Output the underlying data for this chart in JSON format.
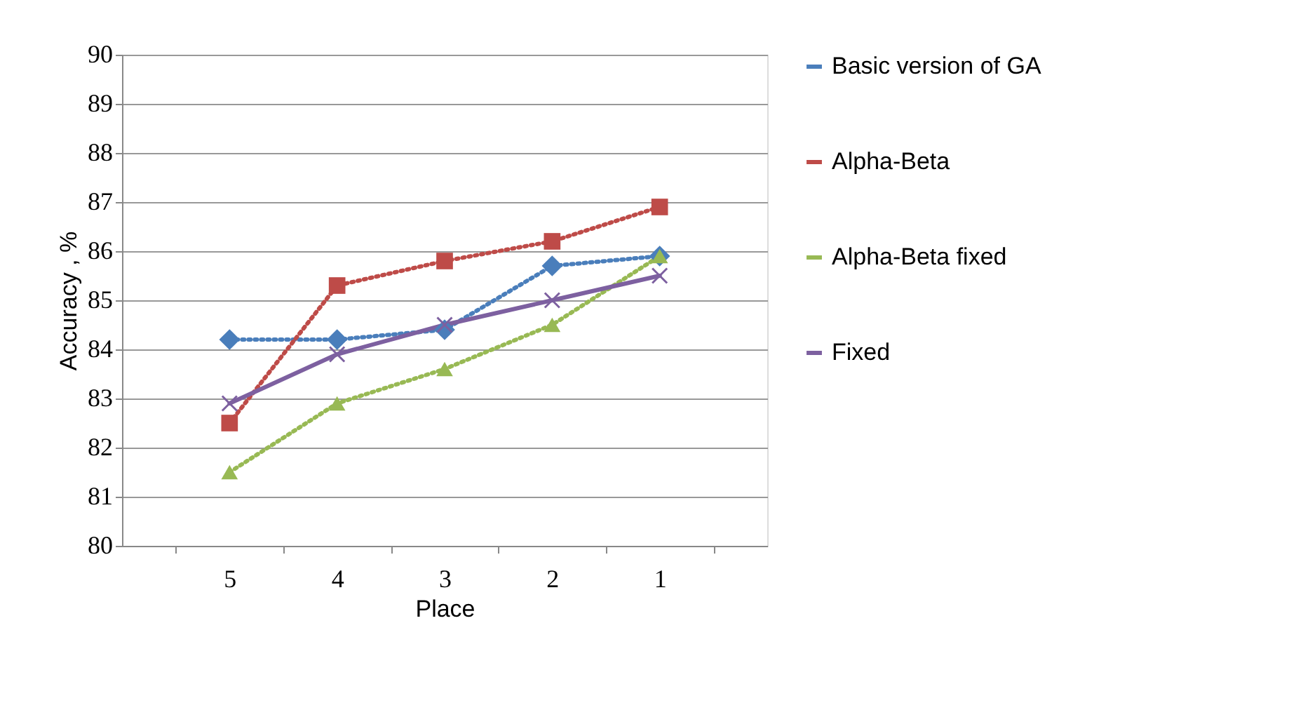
{
  "chart_data": {
    "type": "line",
    "xlabel": "Place",
    "ylabel": "Accuracy  , %",
    "categories": [
      "5",
      "4",
      "3",
      "2",
      "1"
    ],
    "series": [
      {
        "name": "Basic version of GA",
        "color": "#4a7ebb",
        "values": [
          84.2,
          84.2,
          84.4,
          85.7,
          85.9
        ],
        "marker": "diamond",
        "line_style": "dotted"
      },
      {
        "name": "Alpha-Beta",
        "color": "#be4b48",
        "values": [
          82.5,
          85.3,
          85.8,
          86.2,
          86.9
        ],
        "marker": "square",
        "line_style": "dotted"
      },
      {
        "name": "Alpha-Beta fixed",
        "color": "#98b954",
        "values": [
          81.5,
          82.9,
          83.6,
          84.5,
          85.9
        ],
        "marker": "triangle",
        "line_style": "dotted"
      },
      {
        "name": "Fixed",
        "color": "#7d60a0",
        "values": [
          82.9,
          83.9,
          84.5,
          85.0,
          85.5
        ],
        "marker": "cross",
        "line_style": "solid"
      }
    ],
    "ylim": [
      80,
      90
    ],
    "yticks": [
      80,
      81,
      82,
      83,
      84,
      85,
      86,
      87,
      88,
      89,
      90
    ],
    "grid": "y",
    "legend": "right"
  }
}
